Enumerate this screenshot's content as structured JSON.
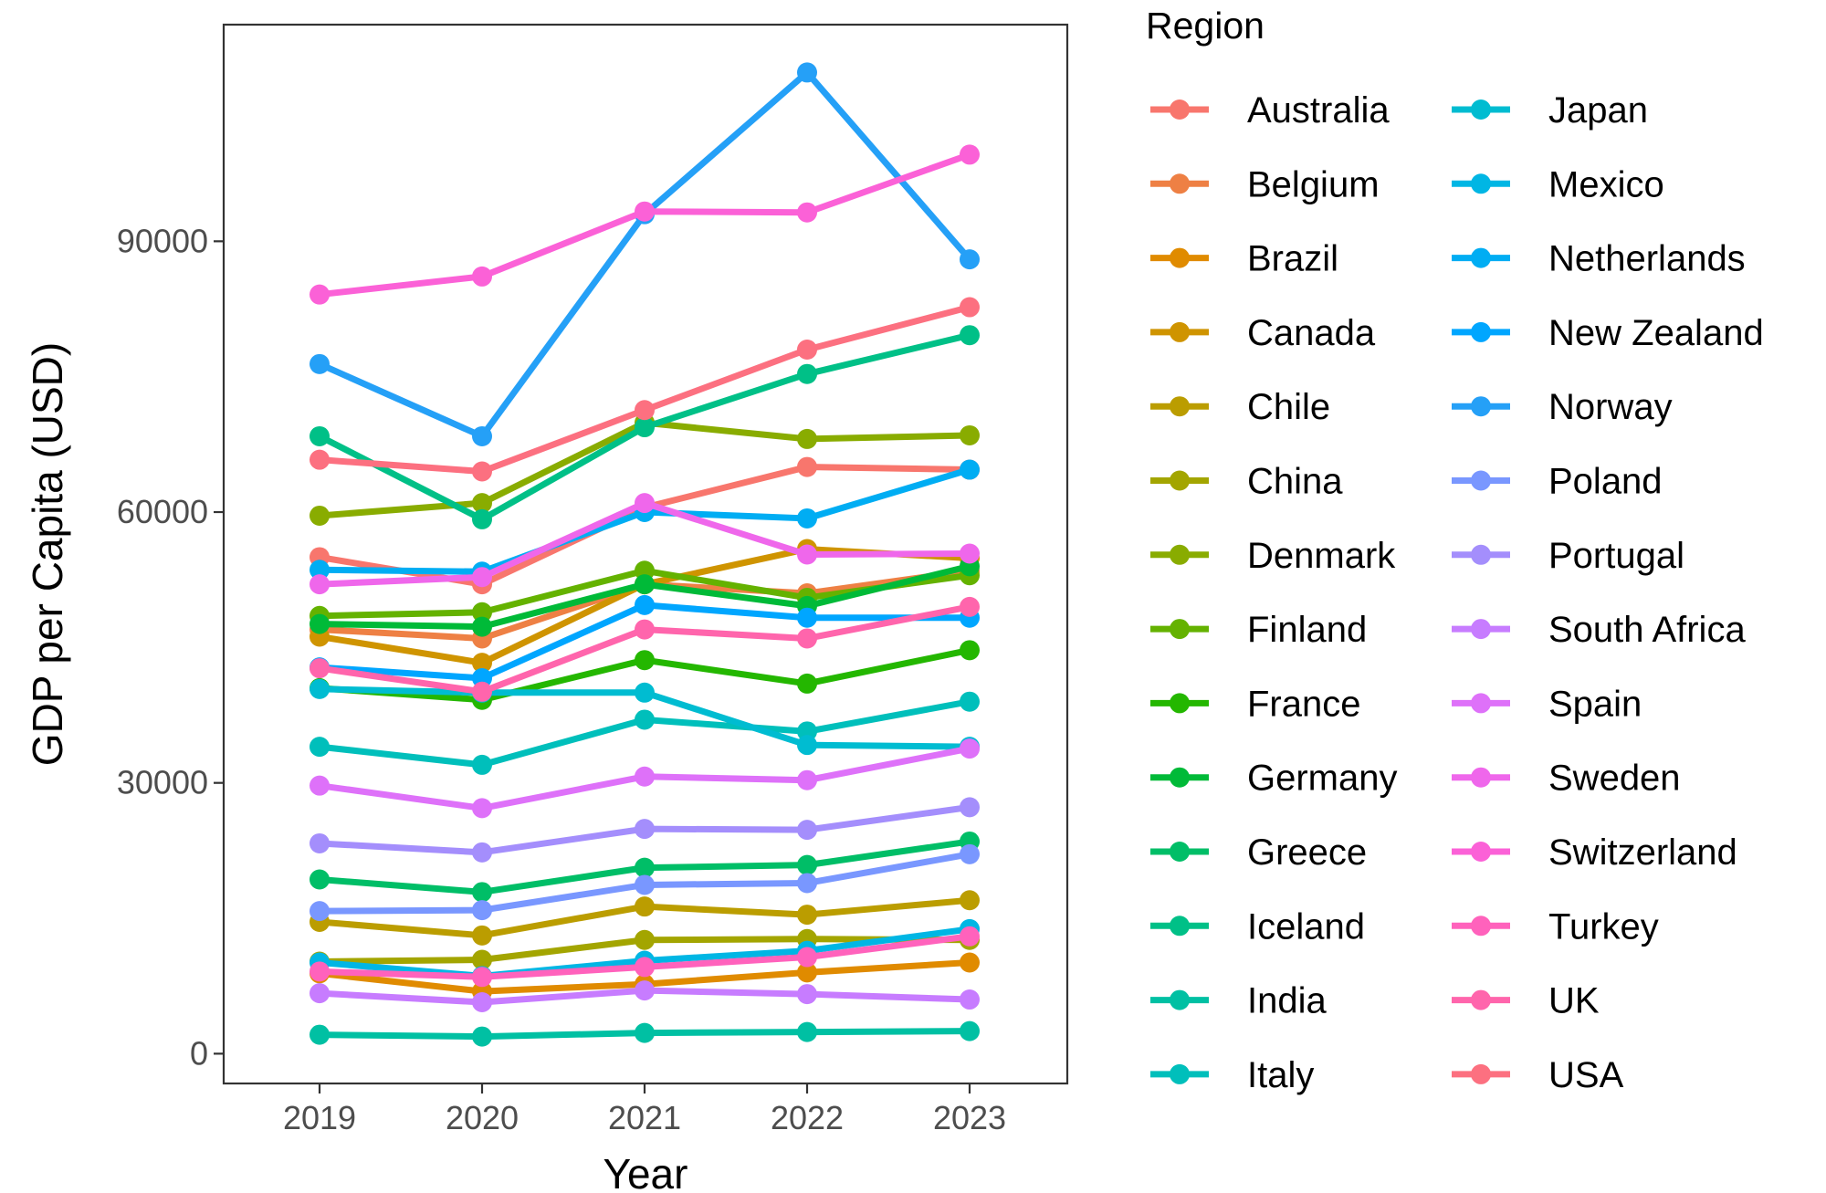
{
  "chart_data": {
    "type": "line",
    "title": "",
    "xlabel": "Year",
    "ylabel": "GDP per Capita (USD)",
    "categories": [
      "2019",
      "2020",
      "2021",
      "2022",
      "2023"
    ],
    "y_ticks": [
      0,
      30000,
      60000,
      90000
    ],
    "y_tick_labels": [
      "0",
      "30000",
      "60000",
      "90000"
    ],
    "ylim": [
      -3300,
      114000
    ],
    "grid": false,
    "legend": {
      "title": "Region",
      "position": "right",
      "columns": 2
    },
    "series": [
      {
        "name": "Australia",
        "color": "#F8766D",
        "values": [
          55000,
          52000,
          60500,
          65000,
          64700
        ]
      },
      {
        "name": "Belgium",
        "color": "#EE8044",
        "values": [
          47000,
          46000,
          52000,
          51000,
          53500
        ]
      },
      {
        "name": "Brazil",
        "color": "#E08B00",
        "values": [
          8900,
          6900,
          7700,
          9000,
          10100
        ]
      },
      {
        "name": "Canada",
        "color": "#CF9400",
        "values": [
          46200,
          43300,
          52000,
          55900,
          54900
        ]
      },
      {
        "name": "Chile",
        "color": "#BB9D00",
        "values": [
          14600,
          13100,
          16300,
          15400,
          17000
        ]
      },
      {
        "name": "China",
        "color": "#A3A500",
        "values": [
          10200,
          10400,
          12600,
          12700,
          12600
        ]
      },
      {
        "name": "Denmark",
        "color": "#89AC00",
        "values": [
          59600,
          61000,
          69900,
          68100,
          68500
        ]
      },
      {
        "name": "Finland",
        "color": "#64B200",
        "values": [
          48500,
          48900,
          53500,
          50500,
          53000
        ]
      },
      {
        "name": "France",
        "color": "#24B700",
        "values": [
          40500,
          39200,
          43600,
          41000,
          44700
        ]
      },
      {
        "name": "Germany",
        "color": "#00BA38",
        "values": [
          47600,
          47300,
          52000,
          49600,
          54000
        ]
      },
      {
        "name": "Greece",
        "color": "#00BE67",
        "values": [
          19300,
          17900,
          20600,
          20900,
          23500
        ]
      },
      {
        "name": "Iceland",
        "color": "#00C087",
        "values": [
          68400,
          59200,
          69400,
          75300,
          79600
        ]
      },
      {
        "name": "India",
        "color": "#00C0A3",
        "values": [
          2100,
          1900,
          2300,
          2400,
          2500
        ]
      },
      {
        "name": "Italy",
        "color": "#00BFBB",
        "values": [
          34000,
          32000,
          37000,
          35700,
          39000
        ]
      },
      {
        "name": "Japan",
        "color": "#00BCD1",
        "values": [
          40400,
          40000,
          40000,
          34200,
          34000
        ]
      },
      {
        "name": "Mexico",
        "color": "#00B6E4",
        "values": [
          10100,
          8600,
          10300,
          11400,
          13800
        ]
      },
      {
        "name": "Netherlands",
        "color": "#00ADF3",
        "values": [
          53600,
          53400,
          60000,
          59300,
          64700
        ]
      },
      {
        "name": "New Zealand",
        "color": "#00A6FF",
        "values": [
          42800,
          41600,
          49700,
          48300,
          48300
        ]
      },
      {
        "name": "Norway",
        "color": "#25A0F7",
        "values": [
          76400,
          68400,
          93000,
          108700,
          88000
        ]
      },
      {
        "name": "Poland",
        "color": "#7997FF",
        "values": [
          15800,
          15900,
          18700,
          18900,
          22100
        ]
      },
      {
        "name": "Portugal",
        "color": "#A48EFC",
        "values": [
          23300,
          22300,
          24900,
          24800,
          27300
        ]
      },
      {
        "name": "South Africa",
        "color": "#C77CFF",
        "values": [
          6700,
          5700,
          7000,
          6600,
          6000
        ]
      },
      {
        "name": "Spain",
        "color": "#DE71F9",
        "values": [
          29700,
          27200,
          30700,
          30300,
          33800
        ]
      },
      {
        "name": "Sweden",
        "color": "#EF67EB",
        "values": [
          52000,
          52800,
          61000,
          55300,
          55400
        ]
      },
      {
        "name": "Switzerland",
        "color": "#FB61D7",
        "values": [
          84100,
          86100,
          93300,
          93200,
          99600
        ]
      },
      {
        "name": "Turkey",
        "color": "#FF62BC",
        "values": [
          9100,
          8500,
          9600,
          10700,
          13000
        ]
      },
      {
        "name": "UK",
        "color": "#FF65AC",
        "values": [
          42700,
          40100,
          47000,
          46000,
          49500
        ]
      },
      {
        "name": "USA",
        "color": "#FC7080",
        "values": [
          65800,
          64500,
          71300,
          78000,
          82700
        ]
      }
    ]
  }
}
